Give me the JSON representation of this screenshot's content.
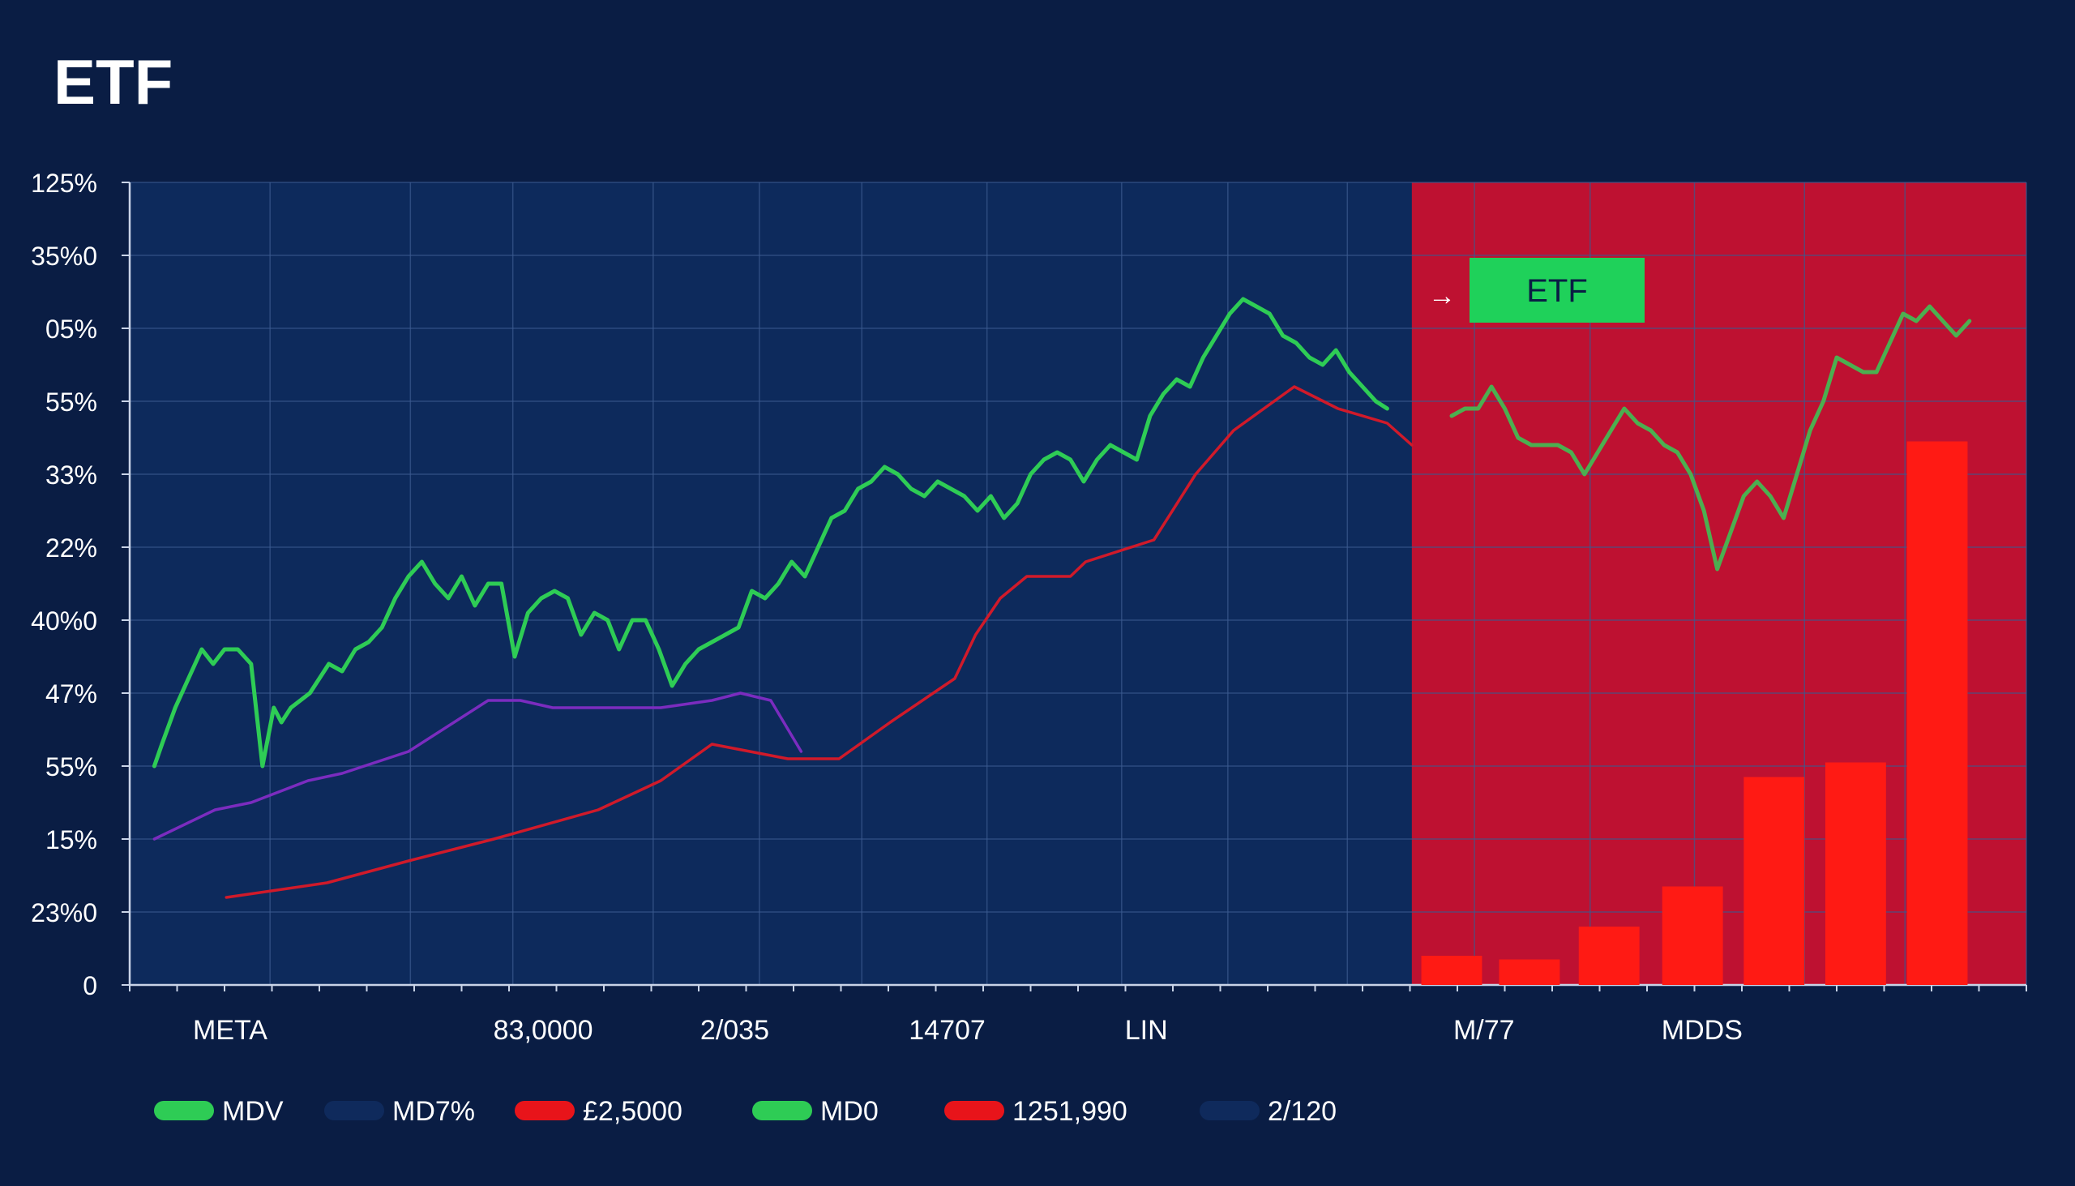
{
  "chart_data": {
    "type": "line",
    "title": "ETF",
    "xlabel": "",
    "ylabel": "",
    "y_tick_labels": [
      "125%",
      "35%0",
      "05%",
      "55%",
      "33%",
      "22%",
      "40%0",
      "47%",
      "55%",
      "15%",
      "23%0",
      "0"
    ],
    "x_tick_labels": [
      "META",
      "83,0000",
      "2/035",
      "14707",
      "LIN",
      "M/77",
      "MDDS"
    ],
    "ylim": [
      0,
      11
    ],
    "xlim": [
      0,
      100
    ],
    "grid": true,
    "highlight_region": {
      "x_start": 67.6,
      "x_end": 100,
      "color": "#c8102e",
      "label": "ETF",
      "label_color": "#1fd15a"
    },
    "annotation_arrow": "→",
    "series": [
      {
        "name": "green-price",
        "color": "#2ecc55",
        "x": [
          1.3,
          1.7,
          2.4,
          3.1,
          3.8,
          4.4,
          5.0,
          5.7,
          6.4,
          7.0,
          7.6,
          8.0,
          8.5,
          9.0,
          9.5,
          10.0,
          10.5,
          11.2,
          11.9,
          12.6,
          13.3,
          14.0,
          14.7,
          15.4,
          16.1,
          16.8,
          17.5,
          18.2,
          18.9,
          19.6,
          20.3,
          21.0,
          21.7,
          22.4,
          23.1,
          23.8,
          24.5,
          25.2,
          25.8,
          26.5,
          27.2,
          27.9,
          28.6,
          29.3,
          30.0,
          30.7,
          31.4,
          32.1,
          32.8,
          33.5,
          34.2,
          34.9,
          35.6,
          36.3,
          37.0,
          37.7,
          38.4,
          39.1,
          39.8,
          40.5,
          41.2,
          41.9,
          42.6,
          43.3,
          44.0,
          44.7,
          45.4,
          46.1,
          46.8,
          47.5,
          48.2,
          48.9,
          49.6,
          50.3,
          51.0,
          51.7,
          52.4,
          53.1,
          53.8,
          54.5,
          55.2,
          55.9,
          56.6,
          57.3,
          58.0,
          58.7,
          59.4,
          60.1,
          60.8,
          61.5,
          62.2,
          62.9,
          63.6,
          64.3,
          65.0,
          65.7,
          66.3
        ],
        "values": [
          3.0,
          3.3,
          3.8,
          4.2,
          4.6,
          4.4,
          4.6,
          4.6,
          4.4,
          3.0,
          3.8,
          3.6,
          3.8,
          3.9,
          4.0,
          4.2,
          4.4,
          4.3,
          4.6,
          4.7,
          4.9,
          5.3,
          5.6,
          5.8,
          5.5,
          5.3,
          5.6,
          5.2,
          5.5,
          5.5,
          4.5,
          5.1,
          5.3,
          5.4,
          5.3,
          4.8,
          5.1,
          5.0,
          4.6,
          5.0,
          5.0,
          4.6,
          4.1,
          4.4,
          4.6,
          4.7,
          4.8,
          4.9,
          5.4,
          5.3,
          5.5,
          5.8,
          5.6,
          6.0,
          6.4,
          6.5,
          6.8,
          6.9,
          7.1,
          7.0,
          6.8,
          6.7,
          6.9,
          6.8,
          6.7,
          6.5,
          6.7,
          6.4,
          6.6,
          7.0,
          7.2,
          7.3,
          7.2,
          6.9,
          7.2,
          7.4,
          7.3,
          7.2,
          7.8,
          8.1,
          8.3,
          8.2,
          8.6,
          8.9,
          9.2,
          9.4,
          9.3,
          9.2,
          8.9,
          8.8,
          8.6,
          8.5,
          8.7,
          8.4,
          8.2,
          8.0,
          7.9
        ]
      },
      {
        "name": "green-price-right",
        "color": "#4caf50",
        "x": [
          69.7,
          70.4,
          71.1,
          71.8,
          72.5,
          73.2,
          73.9,
          74.6,
          75.3,
          76.0,
          76.7,
          77.4,
          78.1,
          78.8,
          79.5,
          80.2,
          80.9,
          81.6,
          82.3,
          83.0,
          83.7,
          84.4,
          85.1,
          85.8,
          86.5,
          87.2,
          87.9,
          88.6,
          89.3,
          90.0,
          90.7,
          91.4,
          92.1,
          92.8,
          93.5,
          94.2,
          94.9,
          95.6,
          96.3,
          97.0
        ],
        "values": [
          7.8,
          7.9,
          7.9,
          8.2,
          7.9,
          7.5,
          7.4,
          7.4,
          7.4,
          7.3,
          7.0,
          7.3,
          7.6,
          7.9,
          7.7,
          7.6,
          7.4,
          7.3,
          7.0,
          6.5,
          5.7,
          6.2,
          6.7,
          6.9,
          6.7,
          6.4,
          7.0,
          7.6,
          8.0,
          8.6,
          8.5,
          8.4,
          8.4,
          8.8,
          9.2,
          9.1,
          9.3,
          9.1,
          8.9,
          9.1
        ]
      },
      {
        "name": "purple-line",
        "color": "#7b2cbf",
        "x": [
          1.3,
          4.5,
          6.4,
          9.4,
          11.2,
          14.7,
          18.9,
          20.6,
          22.3,
          25.2,
          28.0,
          30.7,
          32.2,
          33.8,
          35.4
        ],
        "values": [
          2.0,
          2.4,
          2.5,
          2.8,
          2.9,
          3.2,
          3.9,
          3.9,
          3.8,
          3.8,
          3.8,
          3.9,
          4.0,
          3.9,
          3.2
        ]
      },
      {
        "name": "red-line",
        "color": "#d01a2a",
        "x": [
          5.1,
          10.4,
          14.7,
          19.2,
          24.7,
          28.0,
          30.7,
          34.7,
          37.4,
          40.1,
          43.5,
          44.6,
          45.9,
          47.3,
          49.6,
          50.4,
          54.0,
          56.2,
          58.2,
          61.4,
          63.7,
          66.3,
          67.6
        ],
        "values": [
          1.2,
          1.4,
          1.7,
          2.0,
          2.4,
          2.8,
          3.3,
          3.1,
          3.1,
          3.6,
          4.2,
          4.8,
          5.3,
          5.6,
          5.6,
          5.8,
          6.1,
          7.0,
          7.6,
          8.2,
          7.9,
          7.7,
          7.4
        ]
      }
    ],
    "bars": {
      "name": "red-bars",
      "color": "#ff1a14",
      "x": [
        69.7,
        73.8,
        78.0,
        82.4,
        86.7,
        91.0,
        95.3
      ],
      "width": 3.2,
      "values": [
        0.4,
        0.35,
        0.8,
        1.35,
        2.85,
        3.05,
        7.45
      ]
    }
  },
  "legend": {
    "placement": "bottom-left",
    "items": [
      {
        "label": "MDV",
        "color": "#2ecc55"
      },
      {
        "label": "MD7%",
        "color": "#0f2a5c"
      },
      {
        "label": "£2,5000",
        "color": "#e8141a"
      },
      {
        "label": "MD0",
        "color": "#2ecc55"
      },
      {
        "label": "1251,990",
        "color": "#e8141a"
      },
      {
        "label": "2/120",
        "color": "#0f2a5c"
      }
    ]
  },
  "colors": {
    "background": "#0a1d44",
    "plot_background": "#0d2a5c",
    "grid": "#3b5a8f",
    "axis": "#c9d4e8",
    "text": "#ffffff"
  }
}
